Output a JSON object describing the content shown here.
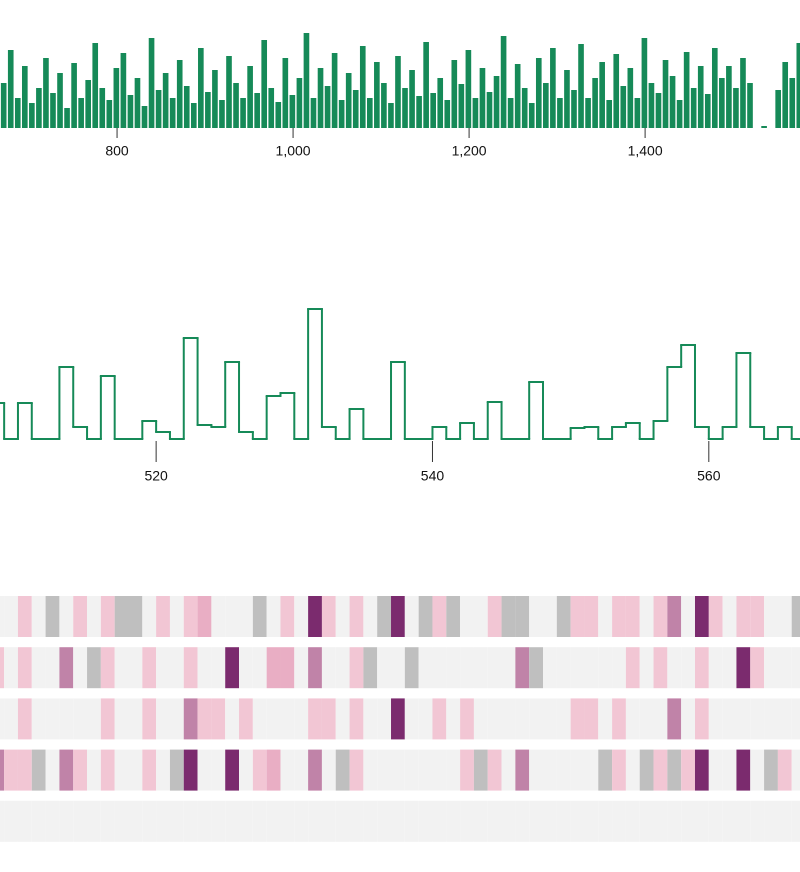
{
  "chart_data": [
    {
      "type": "bar",
      "color": "#168a58",
      "xlim": [
        667,
        1576
      ],
      "xticks": [
        800,
        {
          "value": 1000,
          "label": "1,000"
        },
        {
          "value": 1200,
          "label": "1,200"
        },
        {
          "value": 1400,
          "label": "1,400"
        }
      ],
      "ylim": [
        0,
        100
      ],
      "x": [
        668,
        676,
        684,
        692,
        700,
        708,
        716,
        724,
        732,
        740,
        748,
        756,
        764,
        772,
        780,
        788,
        796,
        804,
        812,
        820,
        828,
        836,
        844,
        852,
        860,
        868,
        876,
        884,
        892,
        900,
        908,
        916,
        924,
        932,
        940,
        948,
        956,
        964,
        972,
        980,
        988,
        996,
        1004,
        1012,
        1020,
        1028,
        1036,
        1044,
        1052,
        1060,
        1068,
        1076,
        1084,
        1092,
        1100,
        1108,
        1116,
        1124,
        1132,
        1140,
        1148,
        1156,
        1164,
        1172,
        1180,
        1188,
        1196,
        1204,
        1212,
        1220,
        1228,
        1236,
        1244,
        1252,
        1260,
        1268,
        1276,
        1284,
        1292,
        1300,
        1308,
        1316,
        1324,
        1332,
        1340,
        1348,
        1356,
        1364,
        1372,
        1380,
        1388,
        1396,
        1404,
        1412,
        1420,
        1428,
        1436,
        1444,
        1452,
        1460,
        1468,
        1476,
        1484,
        1492,
        1500,
        1508,
        1516,
        1524,
        1532,
        1540,
        1548,
        1556,
        1564,
        1572
      ],
      "values": [
        45,
        78,
        30,
        62,
        25,
        40,
        70,
        35,
        55,
        20,
        65,
        30,
        48,
        85,
        40,
        28,
        60,
        75,
        33,
        50,
        22,
        90,
        38,
        55,
        30,
        68,
        42,
        25,
        80,
        36,
        58,
        28,
        72,
        45,
        30,
        62,
        35,
        88,
        40,
        26,
        70,
        33,
        50,
        95,
        30,
        60,
        42,
        75,
        28,
        55,
        38,
        82,
        30,
        66,
        45,
        25,
        72,
        40,
        58,
        32,
        86,
        35,
        50,
        28,
        68,
        44,
        78,
        30,
        60,
        36,
        52,
        92,
        30,
        64,
        40,
        25,
        70,
        45,
        80,
        30,
        58,
        38,
        84,
        30,
        50,
        66,
        28,
        74,
        42,
        60,
        30,
        90,
        45,
        35,
        68,
        52,
        28,
        76,
        40,
        62,
        34,
        80,
        50,
        62,
        40,
        70,
        45,
        0,
        2,
        0,
        38,
        66,
        50,
        85
      ]
    },
    {
      "type": "step",
      "color": "#168a58",
      "xlim": [
        508.7,
        566.6
      ],
      "xticks": [
        520,
        540,
        560
      ],
      "ylim": [
        0,
        150
      ],
      "x": [
        508,
        509,
        510,
        511,
        512,
        513,
        514,
        515,
        516,
        517,
        518,
        519,
        520,
        521,
        522,
        523,
        524,
        525,
        526,
        527,
        528,
        529,
        530,
        531,
        532,
        533,
        534,
        535,
        536,
        537,
        538,
        539,
        540,
        541,
        542,
        543,
        544,
        545,
        546,
        547,
        548,
        549,
        550,
        551,
        552,
        553,
        554,
        555,
        556,
        557,
        558,
        559,
        560,
        561,
        562,
        563,
        564,
        565,
        566
      ],
      "values": [
        36,
        0,
        36,
        0,
        0,
        72,
        12,
        0,
        63,
        0,
        0,
        18,
        7,
        0,
        101,
        14,
        12,
        77,
        7,
        0,
        43,
        46,
        0,
        130,
        12,
        0,
        30,
        0,
        0,
        77,
        0,
        0,
        12,
        0,
        16,
        0,
        37,
        0,
        0,
        57,
        0,
        0,
        11,
        12,
        0,
        12,
        16,
        0,
        18,
        72,
        94,
        12,
        0,
        12,
        86,
        12,
        0,
        12,
        0
      ]
    },
    {
      "type": "heatmap",
      "xlim": [
        508.7,
        566.6
      ],
      "colors": [
        "#f2f2f2",
        "#f2c6d4",
        "#e9aec4",
        "#c083a8",
        "#7b2b6e",
        "#bfbfbf"
      ],
      "x": [
        508,
        509,
        510,
        511,
        512,
        513,
        514,
        515,
        516,
        517,
        518,
        519,
        520,
        521,
        522,
        523,
        524,
        525,
        526,
        527,
        528,
        529,
        530,
        531,
        532,
        533,
        534,
        535,
        536,
        537,
        538,
        539,
        540,
        541,
        542,
        543,
        544,
        545,
        546,
        547,
        548,
        549,
        550,
        551,
        552,
        553,
        554,
        555,
        556,
        557,
        558,
        559,
        560,
        561,
        562,
        563,
        564,
        565,
        566
      ],
      "rows": [
        [
          0,
          0,
          1,
          0,
          5,
          0,
          1,
          0,
          1,
          5,
          5,
          0,
          1,
          0,
          1,
          2,
          0,
          0,
          0,
          5,
          0,
          1,
          0,
          4,
          1,
          0,
          1,
          0,
          5,
          4,
          0,
          5,
          1,
          5,
          0,
          0,
          1,
          5,
          5,
          0,
          0,
          5,
          1,
          1,
          0,
          1,
          1,
          0,
          1,
          3,
          0,
          4,
          1,
          0,
          1,
          1,
          0,
          0,
          5
        ],
        [
          1,
          0,
          1,
          0,
          0,
          3,
          0,
          5,
          1,
          0,
          0,
          1,
          0,
          0,
          1,
          0,
          0,
          4,
          0,
          0,
          2,
          2,
          0,
          3,
          0,
          0,
          1,
          5,
          0,
          0,
          5,
          0,
          0,
          0,
          0,
          0,
          0,
          0,
          3,
          5,
          0,
          0,
          0,
          0,
          0,
          0,
          1,
          0,
          1,
          0,
          0,
          1,
          0,
          0,
          4,
          1,
          0,
          0,
          0
        ],
        [
          0,
          0,
          1,
          0,
          0,
          0,
          0,
          0,
          1,
          0,
          0,
          1,
          0,
          0,
          3,
          1,
          1,
          0,
          1,
          0,
          0,
          0,
          0,
          1,
          1,
          0,
          1,
          0,
          0,
          4,
          0,
          0,
          1,
          0,
          1,
          0,
          0,
          0,
          0,
          0,
          0,
          0,
          1,
          1,
          0,
          1,
          0,
          0,
          0,
          3,
          0,
          1,
          0,
          0,
          0,
          0,
          0,
          0,
          0
        ],
        [
          3,
          1,
          1,
          5,
          0,
          3,
          1,
          0,
          1,
          0,
          0,
          1,
          0,
          5,
          4,
          0,
          0,
          4,
          0,
          1,
          2,
          0,
          0,
          3,
          0,
          5,
          1,
          0,
          0,
          0,
          0,
          0,
          0,
          0,
          1,
          5,
          1,
          0,
          3,
          0,
          0,
          0,
          0,
          0,
          5,
          1,
          0,
          5,
          1,
          5,
          1,
          4,
          0,
          0,
          4,
          0,
          5,
          1,
          0
        ],
        [
          0,
          0,
          0,
          0,
          0,
          0,
          0,
          0,
          0,
          0,
          0,
          0,
          0,
          0,
          0,
          0,
          0,
          0,
          0,
          0,
          0,
          0,
          0,
          0,
          0,
          0,
          0,
          0,
          0,
          0,
          0,
          0,
          0,
          0,
          0,
          0,
          0,
          0,
          0,
          0,
          0,
          0,
          0,
          0,
          0,
          0,
          0,
          0,
          0,
          0,
          0,
          0,
          0,
          0,
          0,
          0,
          0,
          0,
          0
        ]
      ]
    }
  ]
}
